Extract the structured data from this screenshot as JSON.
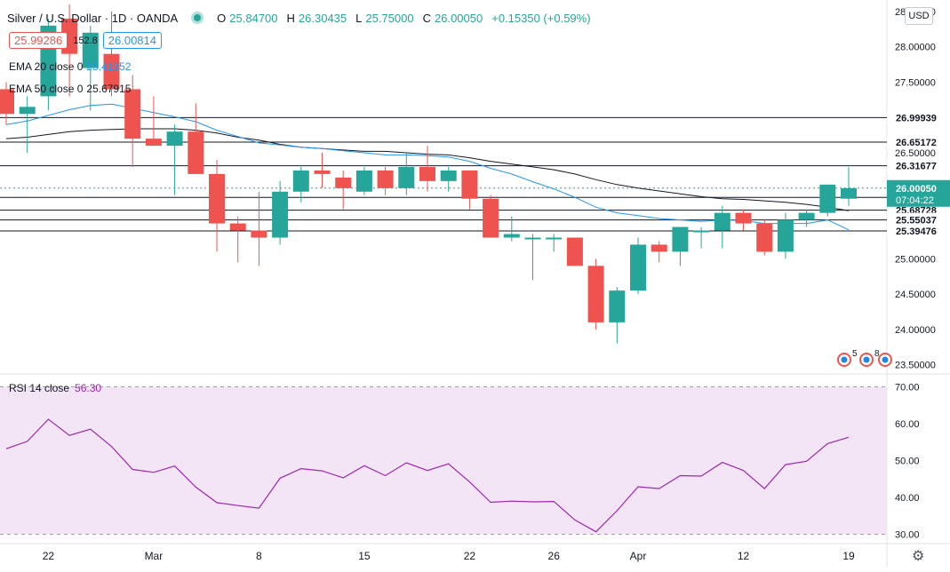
{
  "header": {
    "symbol": "Silver / U.S. Dollar · 1D · OANDA",
    "open_label": "O",
    "open": "25.84700",
    "high_label": "H",
    "high": "26.30435",
    "low_label": "L",
    "low": "25.75000",
    "close_label": "C",
    "close": "26.00050",
    "change": "+0.15350 (+0.59%)"
  },
  "price_boxes": {
    "sell": "25.99286",
    "spread": "152.8",
    "buy": "26.00814"
  },
  "legend": {
    "ema20_label": "EMA 20 close 0",
    "ema20_value": "25.41352",
    "ema50_label": "EMA 50 close 0",
    "ema50_value": "25.67915",
    "rsi_label": "RSI 14 close",
    "rsi_value": "56.30"
  },
  "currency_button": "USD",
  "colors": {
    "up": "#26a69a",
    "down": "#ef5350",
    "ema20": "#2196f3",
    "ema50": "#131722",
    "rsi": "#9c27b0",
    "rsi_band": "#f3e5f5"
  },
  "chart_data": {
    "type": "candlestick",
    "price_axis": {
      "ticks": [
        "23.50000",
        "24.00000",
        "24.50000",
        "25.00000",
        "25.50000",
        "26.00000",
        "26.50000",
        "27.00000",
        "27.50000",
        "28.00000",
        "28.50000"
      ],
      "ylim": [
        23.37,
        28.6
      ]
    },
    "x_ticks": [
      "22",
      "Mar",
      "8",
      "15",
      "22",
      "26",
      "Apr",
      "12",
      "19"
    ],
    "candles": [
      {
        "o": 27.4,
        "h": 27.5,
        "l": 26.9,
        "c": 27.05
      },
      {
        "o": 27.05,
        "h": 27.3,
        "l": 26.5,
        "c": 27.15
      },
      {
        "o": 27.3,
        "h": 28.4,
        "l": 27.1,
        "c": 28.3
      },
      {
        "o": 28.4,
        "h": 28.6,
        "l": 27.3,
        "c": 27.9
      },
      {
        "o": 27.7,
        "h": 28.3,
        "l": 27.1,
        "c": 28.2
      },
      {
        "o": 27.9,
        "h": 28.5,
        "l": 27.3,
        "c": 27.4
      },
      {
        "o": 27.4,
        "h": 27.6,
        "l": 26.3,
        "c": 26.7
      },
      {
        "o": 26.7,
        "h": 27.3,
        "l": 26.6,
        "c": 26.6
      },
      {
        "o": 26.6,
        "h": 26.9,
        "l": 25.9,
        "c": 26.8
      },
      {
        "o": 26.8,
        "h": 27.2,
        "l": 26.2,
        "c": 26.2
      },
      {
        "o": 26.2,
        "h": 26.4,
        "l": 25.1,
        "c": 25.5
      },
      {
        "o": 25.5,
        "h": 25.6,
        "l": 24.95,
        "c": 25.4
      },
      {
        "o": 25.4,
        "h": 25.95,
        "l": 24.9,
        "c": 25.3
      },
      {
        "o": 25.3,
        "h": 26.1,
        "l": 25.2,
        "c": 25.95
      },
      {
        "o": 25.95,
        "h": 26.3,
        "l": 25.8,
        "c": 26.25
      },
      {
        "o": 26.25,
        "h": 26.5,
        "l": 26.0,
        "c": 26.2
      },
      {
        "o": 26.15,
        "h": 26.25,
        "l": 25.7,
        "c": 26.0
      },
      {
        "o": 25.95,
        "h": 26.3,
        "l": 25.9,
        "c": 26.25
      },
      {
        "o": 26.25,
        "h": 26.3,
        "l": 25.9,
        "c": 26.0
      },
      {
        "o": 26.0,
        "h": 26.5,
        "l": 25.9,
        "c": 26.3
      },
      {
        "o": 26.3,
        "h": 26.6,
        "l": 25.95,
        "c": 26.1
      },
      {
        "o": 26.1,
        "h": 26.3,
        "l": 25.95,
        "c": 26.25
      },
      {
        "o": 26.25,
        "h": 26.25,
        "l": 25.7,
        "c": 25.85
      },
      {
        "o": 25.85,
        "h": 25.9,
        "l": 25.3,
        "c": 25.3
      },
      {
        "o": 25.3,
        "h": 25.6,
        "l": 25.25,
        "c": 25.35
      },
      {
        "o": 25.3,
        "h": 25.35,
        "l": 24.7,
        "c": 25.3
      },
      {
        "o": 25.3,
        "h": 25.35,
        "l": 25.1,
        "c": 25.3
      },
      {
        "o": 25.3,
        "h": 25.3,
        "l": 24.9,
        "c": 24.9
      },
      {
        "o": 24.9,
        "h": 25.0,
        "l": 24.0,
        "c": 24.1
      },
      {
        "o": 24.1,
        "h": 24.6,
        "l": 23.8,
        "c": 24.55
      },
      {
        "o": 24.55,
        "h": 25.3,
        "l": 24.5,
        "c": 25.2
      },
      {
        "o": 25.2,
        "h": 25.25,
        "l": 24.95,
        "c": 25.1
      },
      {
        "o": 25.1,
        "h": 25.45,
        "l": 24.9,
        "c": 25.45
      },
      {
        "o": 25.4,
        "h": 25.45,
        "l": 25.15,
        "c": 25.4
      },
      {
        "o": 25.4,
        "h": 25.75,
        "l": 25.15,
        "c": 25.65
      },
      {
        "o": 25.65,
        "h": 25.7,
        "l": 25.4,
        "c": 25.5
      },
      {
        "o": 25.5,
        "h": 25.55,
        "l": 25.05,
        "c": 25.1
      },
      {
        "o": 25.1,
        "h": 25.65,
        "l": 25.0,
        "c": 25.55
      },
      {
        "o": 25.55,
        "h": 25.7,
        "l": 25.45,
        "c": 25.65
      },
      {
        "o": 25.65,
        "h": 26.05,
        "l": 25.6,
        "c": 26.05
      },
      {
        "o": 25.85,
        "h": 26.3,
        "l": 25.75,
        "c": 26.0
      }
    ],
    "ema20": [
      26.9,
      26.95,
      27.03,
      27.11,
      27.17,
      27.19,
      27.13,
      27.07,
      27.01,
      26.94,
      26.82,
      26.73,
      26.64,
      26.61,
      26.58,
      26.56,
      26.53,
      26.5,
      26.47,
      26.47,
      26.46,
      26.44,
      26.38,
      26.28,
      26.2,
      26.09,
      25.99,
      25.87,
      25.73,
      25.65,
      25.61,
      25.57,
      25.55,
      25.53,
      25.55,
      25.54,
      25.5,
      25.5,
      25.5,
      25.55,
      25.41
    ],
    "ema50": [
      26.7,
      26.72,
      26.76,
      26.8,
      26.82,
      26.83,
      26.84,
      26.84,
      26.84,
      26.82,
      26.78,
      26.72,
      26.68,
      26.62,
      26.58,
      26.56,
      26.54,
      26.52,
      26.52,
      26.5,
      26.48,
      26.47,
      26.43,
      26.38,
      26.34,
      26.3,
      26.26,
      26.2,
      26.12,
      26.05,
      26.0,
      25.96,
      25.92,
      25.88,
      25.85,
      25.84,
      25.82,
      25.8,
      25.77,
      25.73,
      25.68
    ],
    "horizontal_lines": [
      "26.99939",
      "26.65172",
      "26.31677",
      "25.86827",
      "25.68728",
      "25.55037",
      "25.39476"
    ],
    "last_price": "26.00050",
    "countdown": "07:04:22",
    "rsi": {
      "ticks": [
        "30.00",
        "40.00",
        "50.00",
        "60.00",
        "70.00"
      ],
      "ylim": [
        27.5,
        72.5
      ],
      "band": [
        30,
        70
      ],
      "values": [
        53.2,
        55.2,
        61.2,
        56.8,
        58.5,
        53.8,
        47.6,
        46.8,
        48.5,
        42.8,
        38.6,
        37.8,
        37.1,
        45.2,
        47.8,
        47.2,
        45.3,
        48.6,
        45.9,
        49.4,
        47.3,
        49.1,
        44.2,
        38.7,
        39.0,
        38.8,
        38.9,
        33.9,
        30.7,
        36.4,
        42.9,
        42.4,
        45.9,
        45.8,
        49.5,
        47.3,
        42.4,
        48.9,
        49.8,
        54.6,
        56.3
      ]
    }
  }
}
